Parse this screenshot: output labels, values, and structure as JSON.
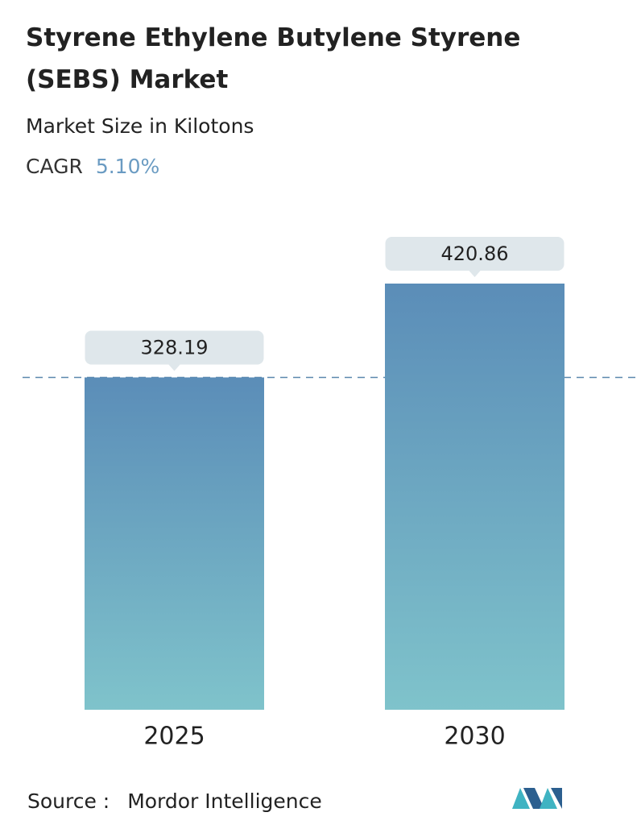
{
  "chart_data": {
    "type": "bar",
    "title": "Styrene Ethylene Butylene Styrene (SEBS) Market",
    "subtitle": "Market Size in Kilotons",
    "cagr": {
      "label": "CAGR",
      "value": "5.10%"
    },
    "categories": [
      "2025",
      "2030"
    ],
    "values": [
      328.19,
      420.86
    ],
    "colors": {
      "top": "#5b8db8",
      "bottom": "#7fc3cb"
    },
    "reference_line": true,
    "source": {
      "label": "Source :",
      "name": "Mordor Intelligence"
    }
  }
}
